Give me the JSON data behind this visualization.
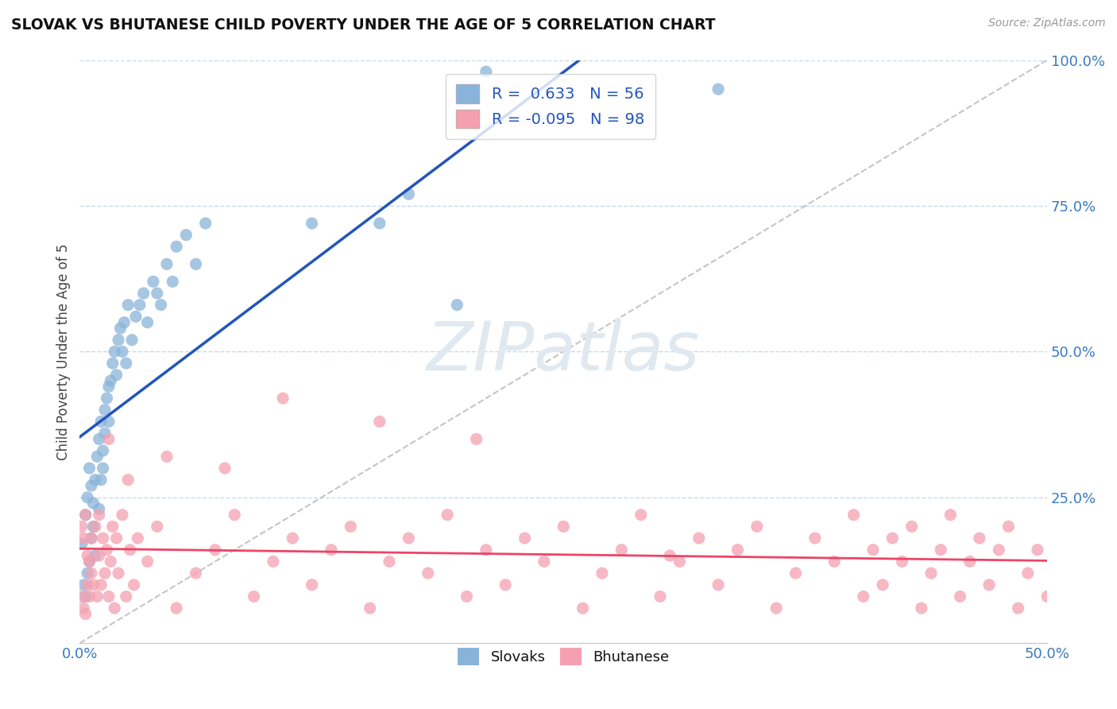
{
  "title": "SLOVAK VS BHUTANESE CHILD POVERTY UNDER THE AGE OF 5 CORRELATION CHART",
  "source": "Source: ZipAtlas.com",
  "ylabel_label": "Child Poverty Under the Age of 5",
  "legend_blue_label": "Slovaks",
  "legend_pink_label": "Bhutanese",
  "blue_R": 0.633,
  "blue_N": 56,
  "pink_R": -0.095,
  "pink_N": 98,
  "blue_color": "#89b4d9",
  "pink_color": "#f4a0b0",
  "blue_line_color": "#2255bb",
  "pink_line_color": "#ee4466",
  "ref_line_color": "#bbbbbb",
  "background_color": "#ffffff",
  "grid_color": "#c8daea",
  "xlim": [
    0.0,
    0.5
  ],
  "ylim": [
    0.0,
    1.0
  ],
  "blue_scatter_x": [
    0.001,
    0.002,
    0.003,
    0.003,
    0.004,
    0.004,
    0.005,
    0.005,
    0.006,
    0.006,
    0.007,
    0.007,
    0.008,
    0.008,
    0.009,
    0.01,
    0.01,
    0.011,
    0.011,
    0.012,
    0.012,
    0.013,
    0.013,
    0.014,
    0.015,
    0.015,
    0.016,
    0.017,
    0.018,
    0.019,
    0.02,
    0.021,
    0.022,
    0.023,
    0.024,
    0.025,
    0.027,
    0.029,
    0.031,
    0.033,
    0.035,
    0.038,
    0.04,
    0.042,
    0.045,
    0.048,
    0.05,
    0.055,
    0.06,
    0.065,
    0.12,
    0.155,
    0.17,
    0.195,
    0.21,
    0.33
  ],
  "blue_scatter_y": [
    0.17,
    0.1,
    0.22,
    0.08,
    0.25,
    0.12,
    0.3,
    0.14,
    0.27,
    0.18,
    0.2,
    0.24,
    0.28,
    0.15,
    0.32,
    0.23,
    0.35,
    0.28,
    0.38,
    0.3,
    0.33,
    0.4,
    0.36,
    0.42,
    0.38,
    0.44,
    0.45,
    0.48,
    0.5,
    0.46,
    0.52,
    0.54,
    0.5,
    0.55,
    0.48,
    0.58,
    0.52,
    0.56,
    0.58,
    0.6,
    0.55,
    0.62,
    0.6,
    0.58,
    0.65,
    0.62,
    0.68,
    0.7,
    0.65,
    0.72,
    0.72,
    0.72,
    0.77,
    0.58,
    0.98,
    0.95
  ],
  "pink_scatter_x": [
    0.001,
    0.001,
    0.002,
    0.002,
    0.003,
    0.003,
    0.004,
    0.004,
    0.005,
    0.005,
    0.006,
    0.006,
    0.007,
    0.008,
    0.009,
    0.01,
    0.01,
    0.011,
    0.012,
    0.013,
    0.014,
    0.015,
    0.016,
    0.017,
    0.018,
    0.019,
    0.02,
    0.022,
    0.024,
    0.026,
    0.028,
    0.03,
    0.035,
    0.04,
    0.05,
    0.06,
    0.07,
    0.08,
    0.09,
    0.1,
    0.11,
    0.12,
    0.13,
    0.14,
    0.15,
    0.16,
    0.17,
    0.18,
    0.19,
    0.2,
    0.21,
    0.22,
    0.23,
    0.24,
    0.25,
    0.26,
    0.27,
    0.28,
    0.29,
    0.3,
    0.31,
    0.32,
    0.33,
    0.34,
    0.35,
    0.36,
    0.37,
    0.38,
    0.39,
    0.4,
    0.405,
    0.41,
    0.415,
    0.42,
    0.425,
    0.43,
    0.435,
    0.44,
    0.445,
    0.45,
    0.455,
    0.46,
    0.465,
    0.47,
    0.475,
    0.48,
    0.485,
    0.49,
    0.495,
    0.5,
    0.015,
    0.025,
    0.045,
    0.075,
    0.105,
    0.155,
    0.205,
    0.305
  ],
  "pink_scatter_y": [
    0.2,
    0.08,
    0.18,
    0.06,
    0.22,
    0.05,
    0.15,
    0.1,
    0.14,
    0.08,
    0.12,
    0.18,
    0.1,
    0.2,
    0.08,
    0.15,
    0.22,
    0.1,
    0.18,
    0.12,
    0.16,
    0.08,
    0.14,
    0.2,
    0.06,
    0.18,
    0.12,
    0.22,
    0.08,
    0.16,
    0.1,
    0.18,
    0.14,
    0.2,
    0.06,
    0.12,
    0.16,
    0.22,
    0.08,
    0.14,
    0.18,
    0.1,
    0.16,
    0.2,
    0.06,
    0.14,
    0.18,
    0.12,
    0.22,
    0.08,
    0.16,
    0.1,
    0.18,
    0.14,
    0.2,
    0.06,
    0.12,
    0.16,
    0.22,
    0.08,
    0.14,
    0.18,
    0.1,
    0.16,
    0.2,
    0.06,
    0.12,
    0.18,
    0.14,
    0.22,
    0.08,
    0.16,
    0.1,
    0.18,
    0.14,
    0.2,
    0.06,
    0.12,
    0.16,
    0.22,
    0.08,
    0.14,
    0.18,
    0.1,
    0.16,
    0.2,
    0.06,
    0.12,
    0.16,
    0.08,
    0.35,
    0.28,
    0.32,
    0.3,
    0.42,
    0.38,
    0.35,
    0.15
  ]
}
